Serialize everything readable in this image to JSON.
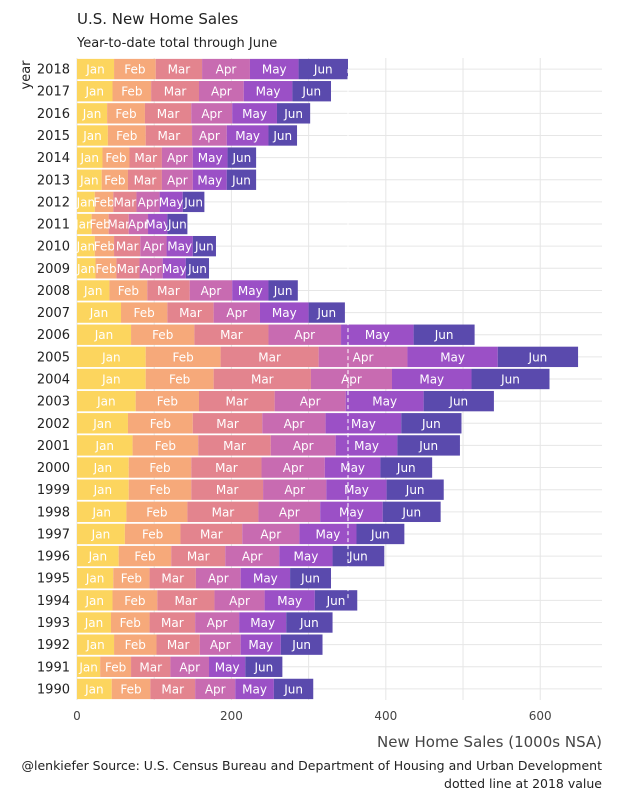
{
  "chart_data": {
    "type": "bar",
    "orientation": "horizontal",
    "stacked": true,
    "title": "U.S. New Home Sales",
    "subtitle": "Year-to-date total through June",
    "xlabel": "New Home Sales (1000s NSA)",
    "ylabel": "year",
    "caption_line1": "@lenkiefer Source: U.S. Census Bureau and Department of Housing and Urban Development",
    "caption_line2": "dotted line at 2018 value",
    "xlim": [
      0,
      680
    ],
    "xticks": [
      0,
      200,
      400,
      600
    ],
    "grid": true,
    "legend": "none",
    "reference_value": 351,
    "months": [
      "Jan",
      "Feb",
      "Mar",
      "Apr",
      "May",
      "Jun"
    ],
    "month_colors": [
      "#fcd55e",
      "#f6a97a",
      "#e3848e",
      "#c86bb1",
      "#9b50c6",
      "#5a4aad"
    ],
    "years": [
      {
        "year": "2018",
        "values": [
          48,
          54,
          60,
          62,
          63,
          64
        ]
      },
      {
        "year": "2017",
        "values": [
          46,
          50,
          62,
          58,
          63,
          50
        ]
      },
      {
        "year": "2016",
        "values": [
          39,
          49,
          60,
          53,
          58,
          43
        ]
      },
      {
        "year": "2015",
        "values": [
          40,
          49,
          60,
          45,
          54,
          37
        ]
      },
      {
        "year": "2014",
        "values": [
          33,
          35,
          42,
          40,
          45,
          37
        ]
      },
      {
        "year": "2013",
        "values": [
          32,
          34,
          44,
          40,
          44,
          38
        ]
      },
      {
        "year": "2012",
        "values": [
          23,
          24,
          30,
          30,
          30,
          28
        ]
      },
      {
        "year": "2011",
        "values": [
          19,
          22,
          26,
          25,
          25,
          26
        ]
      },
      {
        "year": "2010",
        "values": [
          23,
          25,
          34,
          34,
          34,
          30
        ]
      },
      {
        "year": "2009",
        "values": [
          24,
          27,
          30,
          30,
          30,
          30
        ]
      },
      {
        "year": "2008",
        "values": [
          42,
          49,
          55,
          55,
          47,
          38
        ]
      },
      {
        "year": "2007",
        "values": [
          57,
          60,
          60,
          60,
          63,
          47
        ]
      },
      {
        "year": "2006",
        "values": [
          70,
          82,
          96,
          94,
          94,
          79
        ]
      },
      {
        "year": "2005",
        "values": [
          89,
          97,
          127,
          115,
          117,
          104
        ]
      },
      {
        "year": "2004",
        "values": [
          89,
          88,
          126,
          105,
          103,
          101
        ]
      },
      {
        "year": "2003",
        "values": [
          76,
          82,
          98,
          92,
          101,
          91
        ]
      },
      {
        "year": "2002",
        "values": [
          66,
          84,
          90,
          82,
          98,
          78
        ]
      },
      {
        "year": "2001",
        "values": [
          72,
          85,
          94,
          84,
          80,
          81
        ]
      },
      {
        "year": "2000",
        "values": [
          67,
          81,
          91,
          82,
          72,
          67
        ]
      },
      {
        "year": "1999",
        "values": [
          67,
          81,
          93,
          82,
          78,
          74
        ]
      },
      {
        "year": "1998",
        "values": [
          64,
          79,
          92,
          80,
          81,
          75
        ]
      },
      {
        "year": "1997",
        "values": [
          62,
          72,
          80,
          74,
          74,
          62
        ]
      },
      {
        "year": "1996",
        "values": [
          54,
          68,
          70,
          70,
          69,
          67
        ]
      },
      {
        "year": "1995",
        "values": [
          47,
          47,
          60,
          58,
          64,
          53
        ]
      },
      {
        "year": "1994",
        "values": [
          46,
          58,
          74,
          65,
          65,
          55
        ]
      },
      {
        "year": "1993",
        "values": [
          44,
          50,
          59,
          57,
          61,
          60
        ]
      },
      {
        "year": "1992",
        "values": [
          48,
          55,
          56,
          53,
          52,
          54
        ]
      },
      {
        "year": "1991",
        "values": [
          30,
          40,
          51,
          50,
          47,
          48
        ]
      },
      {
        "year": "1990",
        "values": [
          45,
          50,
          58,
          52,
          50,
          51
        ]
      }
    ]
  }
}
